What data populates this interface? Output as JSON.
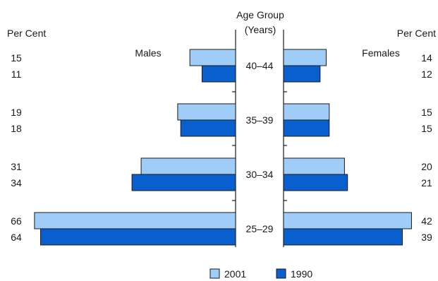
{
  "chart_data": {
    "type": "bar",
    "title": "",
    "center_label_line1": "Age Group",
    "center_label_line2": "(Years)",
    "left_unit_label": "Per Cent",
    "right_unit_label": "Per Cent",
    "left_side_label": "Males",
    "right_side_label": "Females",
    "categories": [
      "40–44",
      "35–39",
      "30–34",
      "25–29"
    ],
    "series": [
      {
        "name": "2001",
        "color": "#9fcdf8",
        "males": [
          15,
          19,
          31,
          66
        ],
        "females": [
          14,
          15,
          20,
          42
        ]
      },
      {
        "name": "1990",
        "color": "#0a5fcf",
        "males": [
          11,
          18,
          34,
          64
        ],
        "females": [
          12,
          15,
          21,
          39
        ]
      }
    ],
    "legend": {
      "placement": "bottom-center"
    }
  }
}
